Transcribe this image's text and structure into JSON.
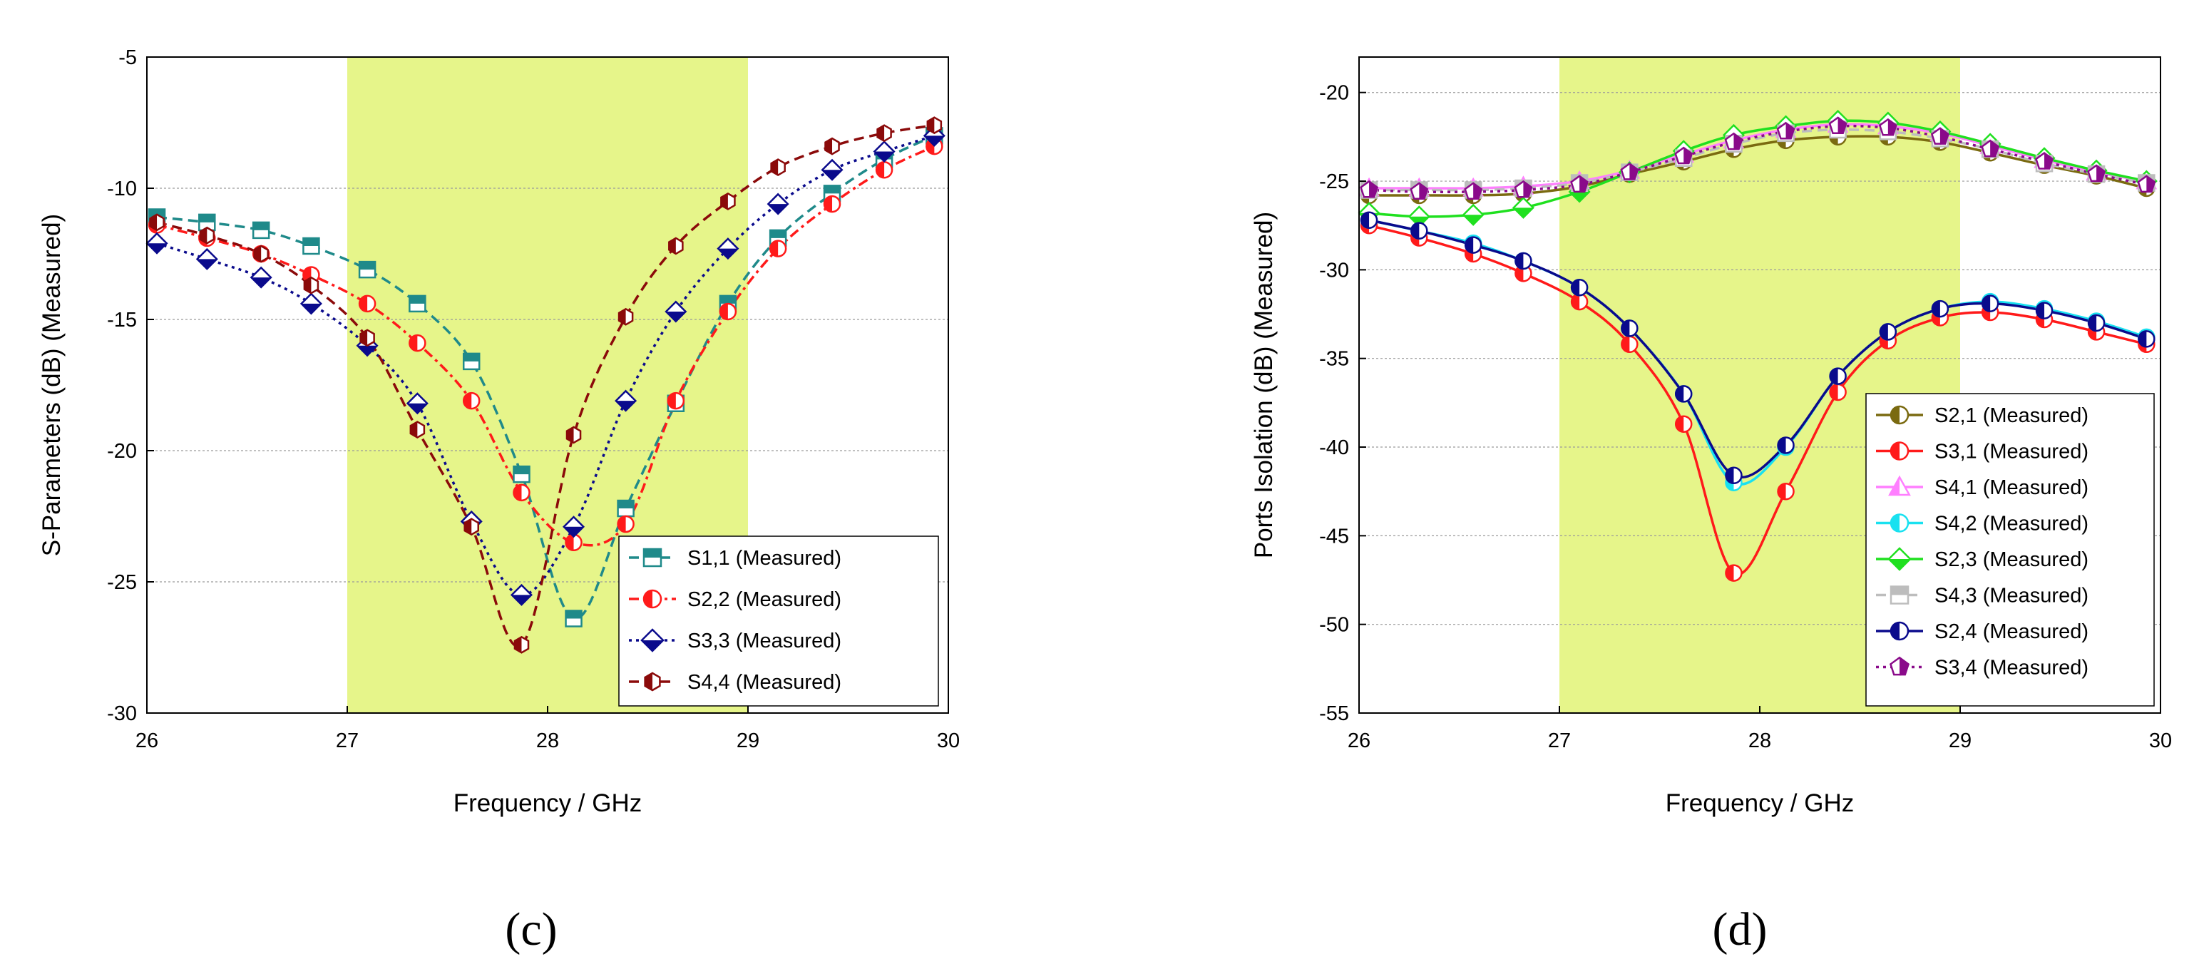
{
  "chart_data": [
    {
      "type": "line",
      "panel_label": "(c)",
      "xlabel": "Frequency / GHz",
      "ylabel": "S-Parameters (dB) (Measured)",
      "xlim": [
        26,
        30
      ],
      "ylim": [
        -30,
        -5
      ],
      "xticks": [
        26,
        27,
        28,
        29,
        30
      ],
      "yticks": [
        -5,
        -10,
        -15,
        -20,
        -25,
        -30
      ],
      "shaded_band": [
        27,
        29
      ],
      "shade_color": "#e6f58a",
      "legend_position": "bottom-right",
      "series": [
        {
          "name": "S1,1 (Measured)",
          "color": "#1f8a8a",
          "dash": "dashed",
          "marker": "square",
          "x": [
            26.05,
            26.3,
            26.57,
            26.82,
            27.1,
            27.35,
            27.62,
            27.87,
            28.13,
            28.39,
            28.64,
            28.9,
            29.15,
            29.42,
            29.68,
            29.93
          ],
          "y": [
            -11.1,
            -11.3,
            -11.6,
            -12.2,
            -13.1,
            -14.4,
            -16.6,
            -20.9,
            -26.4,
            -22.2,
            -18.2,
            -14.4,
            -11.9,
            -10.2,
            -8.9,
            -8.0
          ]
        },
        {
          "name": "S2,2 (Measured)",
          "color": "#ff1a1a",
          "dash": "dashdot",
          "marker": "circle",
          "x": [
            26.05,
            26.3,
            26.57,
            26.82,
            27.1,
            27.35,
            27.62,
            27.87,
            28.13,
            28.39,
            28.64,
            28.9,
            29.15,
            29.42,
            29.68,
            29.93
          ],
          "y": [
            -11.4,
            -11.9,
            -12.5,
            -13.3,
            -14.4,
            -15.9,
            -18.1,
            -21.6,
            -23.5,
            -22.8,
            -18.1,
            -14.7,
            -12.3,
            -10.6,
            -9.3,
            -8.4
          ]
        },
        {
          "name": "S3,3 (Measured)",
          "color": "#0a0a8c",
          "dash": "dotted",
          "marker": "diamond",
          "x": [
            26.05,
            26.3,
            26.57,
            26.82,
            27.1,
            27.35,
            27.62,
            27.87,
            28.13,
            28.39,
            28.64,
            28.9,
            29.15,
            29.42,
            29.68,
            29.93
          ],
          "y": [
            -12.1,
            -12.7,
            -13.4,
            -14.4,
            -16.0,
            -18.2,
            -22.7,
            -25.5,
            -22.9,
            -18.1,
            -14.7,
            -12.3,
            -10.6,
            -9.3,
            -8.6,
            -8.0
          ]
        },
        {
          "name": "S4,4 (Measured)",
          "color": "#8b0a0a",
          "dash": "dashed",
          "marker": "hexagon",
          "x": [
            26.05,
            26.3,
            26.57,
            26.82,
            27.1,
            27.35,
            27.62,
            27.87,
            28.13,
            28.39,
            28.64,
            28.9,
            29.15,
            29.42,
            29.68,
            29.93
          ],
          "y": [
            -11.3,
            -11.8,
            -12.5,
            -13.7,
            -15.7,
            -19.2,
            -22.9,
            -27.4,
            -19.4,
            -14.9,
            -12.2,
            -10.5,
            -9.2,
            -8.4,
            -7.9,
            -7.6
          ]
        }
      ]
    },
    {
      "type": "line",
      "panel_label": "(d)",
      "xlabel": "Frequency / GHz",
      "ylabel": "Ports Isolation (dB) (Measured)",
      "xlim": [
        26,
        30
      ],
      "ylim": [
        -55,
        -18
      ],
      "xticks": [
        26,
        27,
        28,
        29,
        30
      ],
      "yticks": [
        -20,
        -25,
        -30,
        -35,
        -40,
        -45,
        -50,
        -55
      ],
      "shaded_band": [
        27,
        29
      ],
      "shade_color": "#e6f58a",
      "legend_position": "bottom-right",
      "series": [
        {
          "name": "S2,1 (Measured)",
          "color": "#7a6a10",
          "dash": "solid",
          "marker": "circle",
          "x": [
            26.05,
            26.3,
            26.57,
            26.82,
            27.1,
            27.35,
            27.62,
            27.87,
            28.13,
            28.39,
            28.64,
            28.9,
            29.15,
            29.42,
            29.68,
            29.93
          ],
          "y": [
            -25.8,
            -25.8,
            -25.8,
            -25.7,
            -25.3,
            -24.6,
            -23.9,
            -23.2,
            -22.7,
            -22.5,
            -22.5,
            -22.8,
            -23.4,
            -24.1,
            -24.7,
            -25.4
          ]
        },
        {
          "name": "S3,1 (Measured)",
          "color": "#ff1a1a",
          "dash": "solid",
          "marker": "circle",
          "x": [
            26.05,
            26.3,
            26.57,
            26.82,
            27.1,
            27.35,
            27.62,
            27.87,
            28.13,
            28.39,
            28.64,
            28.9,
            29.15,
            29.42,
            29.68,
            29.93
          ],
          "y": [
            -27.5,
            -28.2,
            -29.1,
            -30.2,
            -31.8,
            -34.2,
            -38.7,
            -47.1,
            -42.5,
            -36.9,
            -34.0,
            -32.7,
            -32.4,
            -32.8,
            -33.5,
            -34.2
          ]
        },
        {
          "name": "S4,1 (Measured)",
          "color": "#ff7fff",
          "dash": "solid",
          "marker": "triangle",
          "x": [
            26.05,
            26.3,
            26.57,
            26.82,
            27.1,
            27.35,
            27.62,
            27.87,
            28.13,
            28.39,
            28.64,
            28.9,
            29.15,
            29.42,
            29.68,
            29.93
          ],
          "y": [
            -25.4,
            -25.4,
            -25.4,
            -25.3,
            -25.0,
            -24.4,
            -23.5,
            -22.7,
            -22.1,
            -21.8,
            -21.9,
            -22.3,
            -23.0,
            -23.8,
            -24.5,
            -25.0
          ]
        },
        {
          "name": "S4,2 (Measured)",
          "color": "#19e1f0",
          "dash": "solid",
          "marker": "circle",
          "x": [
            26.05,
            26.3,
            26.57,
            26.82,
            27.1,
            27.35,
            27.62,
            27.87,
            28.13,
            28.39,
            28.64,
            28.9,
            29.15,
            29.42,
            29.68,
            29.93
          ],
          "y": [
            -27.2,
            -27.8,
            -28.5,
            -29.5,
            -31.0,
            -33.3,
            -37.0,
            -42.0,
            -40.0,
            -36.0,
            -33.5,
            -32.2,
            -31.8,
            -32.2,
            -32.9,
            -33.8
          ]
        },
        {
          "name": "S2,3 (Measured)",
          "color": "#1fe01f",
          "dash": "solid",
          "marker": "diamond",
          "x": [
            26.05,
            26.3,
            26.57,
            26.82,
            27.1,
            27.35,
            27.62,
            27.87,
            28.13,
            28.39,
            28.64,
            28.9,
            29.15,
            29.42,
            29.68,
            29.93
          ],
          "y": [
            -26.8,
            -27.0,
            -26.9,
            -26.5,
            -25.6,
            -24.5,
            -23.3,
            -22.4,
            -21.9,
            -21.6,
            -21.7,
            -22.2,
            -22.9,
            -23.7,
            -24.4,
            -25.0
          ]
        },
        {
          "name": "S4,3 (Measured)",
          "color": "#bdbdbd",
          "dash": "dashed",
          "marker": "square",
          "x": [
            26.05,
            26.3,
            26.57,
            26.82,
            27.1,
            27.35,
            27.62,
            27.87,
            28.13,
            28.39,
            28.64,
            28.9,
            29.15,
            29.42,
            29.68,
            29.93
          ],
          "y": [
            -25.5,
            -25.5,
            -25.5,
            -25.4,
            -25.1,
            -24.5,
            -23.7,
            -22.9,
            -22.3,
            -22.1,
            -22.2,
            -22.6,
            -23.2,
            -24.0,
            -24.6,
            -25.1
          ]
        },
        {
          "name": "S2,4 (Measured)",
          "color": "#0a0a8c",
          "dash": "solid",
          "marker": "circle",
          "x": [
            26.05,
            26.3,
            26.57,
            26.82,
            27.1,
            27.35,
            27.62,
            27.87,
            28.13,
            28.39,
            28.64,
            28.9,
            29.15,
            29.42,
            29.68,
            29.93
          ],
          "y": [
            -27.2,
            -27.8,
            -28.6,
            -29.5,
            -31.0,
            -33.3,
            -37.0,
            -41.6,
            -39.9,
            -36.0,
            -33.5,
            -32.2,
            -31.9,
            -32.3,
            -33.0,
            -33.9
          ]
        },
        {
          "name": "S3,4 (Measured)",
          "color": "#8a0a8a",
          "dash": "dotted",
          "marker": "pentagon",
          "x": [
            26.05,
            26.3,
            26.57,
            26.82,
            27.1,
            27.35,
            27.62,
            27.87,
            28.13,
            28.39,
            28.64,
            28.9,
            29.15,
            29.42,
            29.68,
            29.93
          ],
          "y": [
            -25.5,
            -25.6,
            -25.6,
            -25.5,
            -25.2,
            -24.5,
            -23.6,
            -22.8,
            -22.2,
            -21.9,
            -22.0,
            -22.5,
            -23.2,
            -23.9,
            -24.6,
            -25.2
          ]
        }
      ]
    }
  ]
}
